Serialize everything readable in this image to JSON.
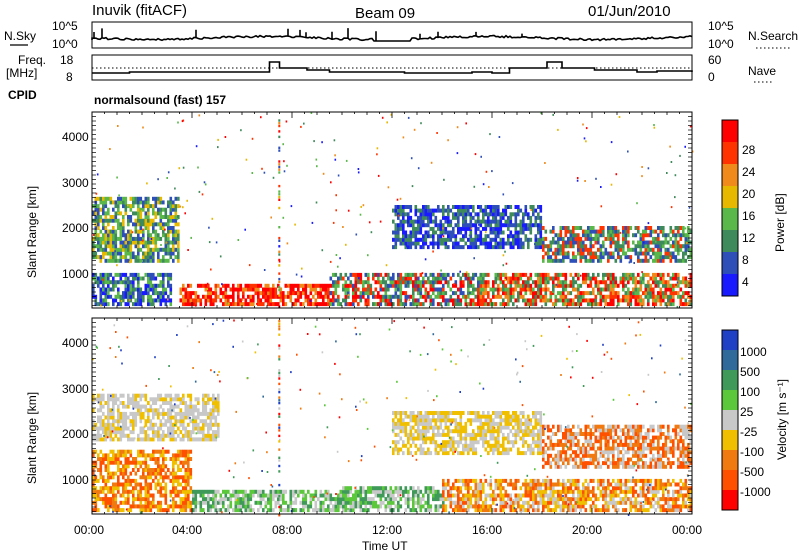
{
  "header": {
    "station": "Inuvik (fitACF)",
    "beam": "Beam 09",
    "date": "01/Jun/2010"
  },
  "noise_panel": {
    "left_label": "N.Sky",
    "right_label": "N.Search",
    "left_ticks": [
      "10^5",
      "10^0"
    ],
    "right_ticks": [
      "10^5",
      "10^0"
    ]
  },
  "freq_panel": {
    "left_label_1": "Freq.",
    "left_label_2": "[MHz]",
    "right_label": "Nave",
    "left_ticks": [
      "18",
      "8"
    ],
    "right_ticks": [
      "60",
      "0"
    ],
    "cpid_label": "CPID",
    "cpid_value": "normalsound (fast) 157"
  },
  "power_panel": {
    "ylabel": "Slant Range [km]",
    "yticks": [
      "1000",
      "2000",
      "3000",
      "4000"
    ],
    "colorbar_label": "Power [dB]",
    "colorbar_ticks": [
      "4",
      "8",
      "12",
      "16",
      "20",
      "24",
      "28"
    ],
    "colors": [
      "#1a1aff",
      "#2e4fb8",
      "#3f8a5a",
      "#5ab84a",
      "#e6b800",
      "#f08a1a",
      "#ff3300",
      "#ff0000"
    ]
  },
  "velocity_panel": {
    "ylabel": "Slant Range [km]",
    "yticks": [
      "1000",
      "2000",
      "3000",
      "4000"
    ],
    "colorbar_label": "Velocity [m s⁻¹]",
    "colorbar_ticks": [
      "1000",
      "500",
      "100",
      "25",
      "-25",
      "-100",
      "-500",
      "-1000"
    ],
    "colors": [
      "#1f3fc4",
      "#2f6a9a",
      "#3f9a5a",
      "#5ac83a",
      "#c8c8c8",
      "#f0c000",
      "#f07a10",
      "#ff5000",
      "#ff0000"
    ]
  },
  "x_axis": {
    "ticks": [
      "00:00",
      "04:00",
      "08:00",
      "12:00",
      "16:00",
      "20:00",
      "00:00"
    ],
    "label": "Time UT"
  },
  "chart_data": {
    "type": "heatmap",
    "x_range_hours": [
      0,
      24
    ],
    "y_range_km": [
      200,
      4500
    ],
    "power_colorbar_ticks_db": [
      4,
      8,
      12,
      16,
      20,
      24,
      28
    ],
    "velocity_colorbar_ticks_ms": [
      1000,
      500,
      100,
      25,
      -25,
      -100,
      -500,
      -1000
    ]
  }
}
